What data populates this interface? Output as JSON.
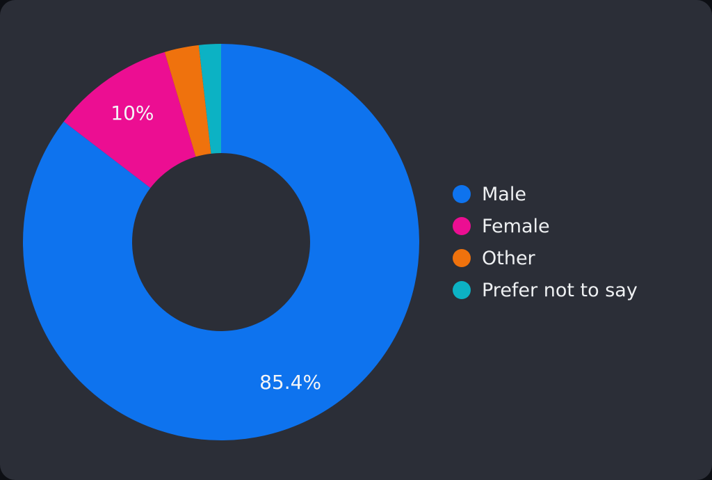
{
  "panel": {
    "background_color": "#2b2e37",
    "page_background_color": "#0d0f14"
  },
  "chart_data": {
    "type": "pie",
    "donut": true,
    "start_angle_deg": 0,
    "direction": "clockwise",
    "legend_position": "right",
    "text_color": "#eef0f2",
    "series": [
      {
        "label": "Male",
        "value": 85.4,
        "color": "#0e73ee",
        "slice_label": "85.4%"
      },
      {
        "label": "Female",
        "value": 10.0,
        "color": "#ec0e92",
        "slice_label": "10%"
      },
      {
        "label": "Other",
        "value": 2.8,
        "color": "#ef720d",
        "slice_label": ""
      },
      {
        "label": "Prefer not to say",
        "value": 1.8,
        "color": "#0cb2c4",
        "slice_label": ""
      }
    ]
  }
}
